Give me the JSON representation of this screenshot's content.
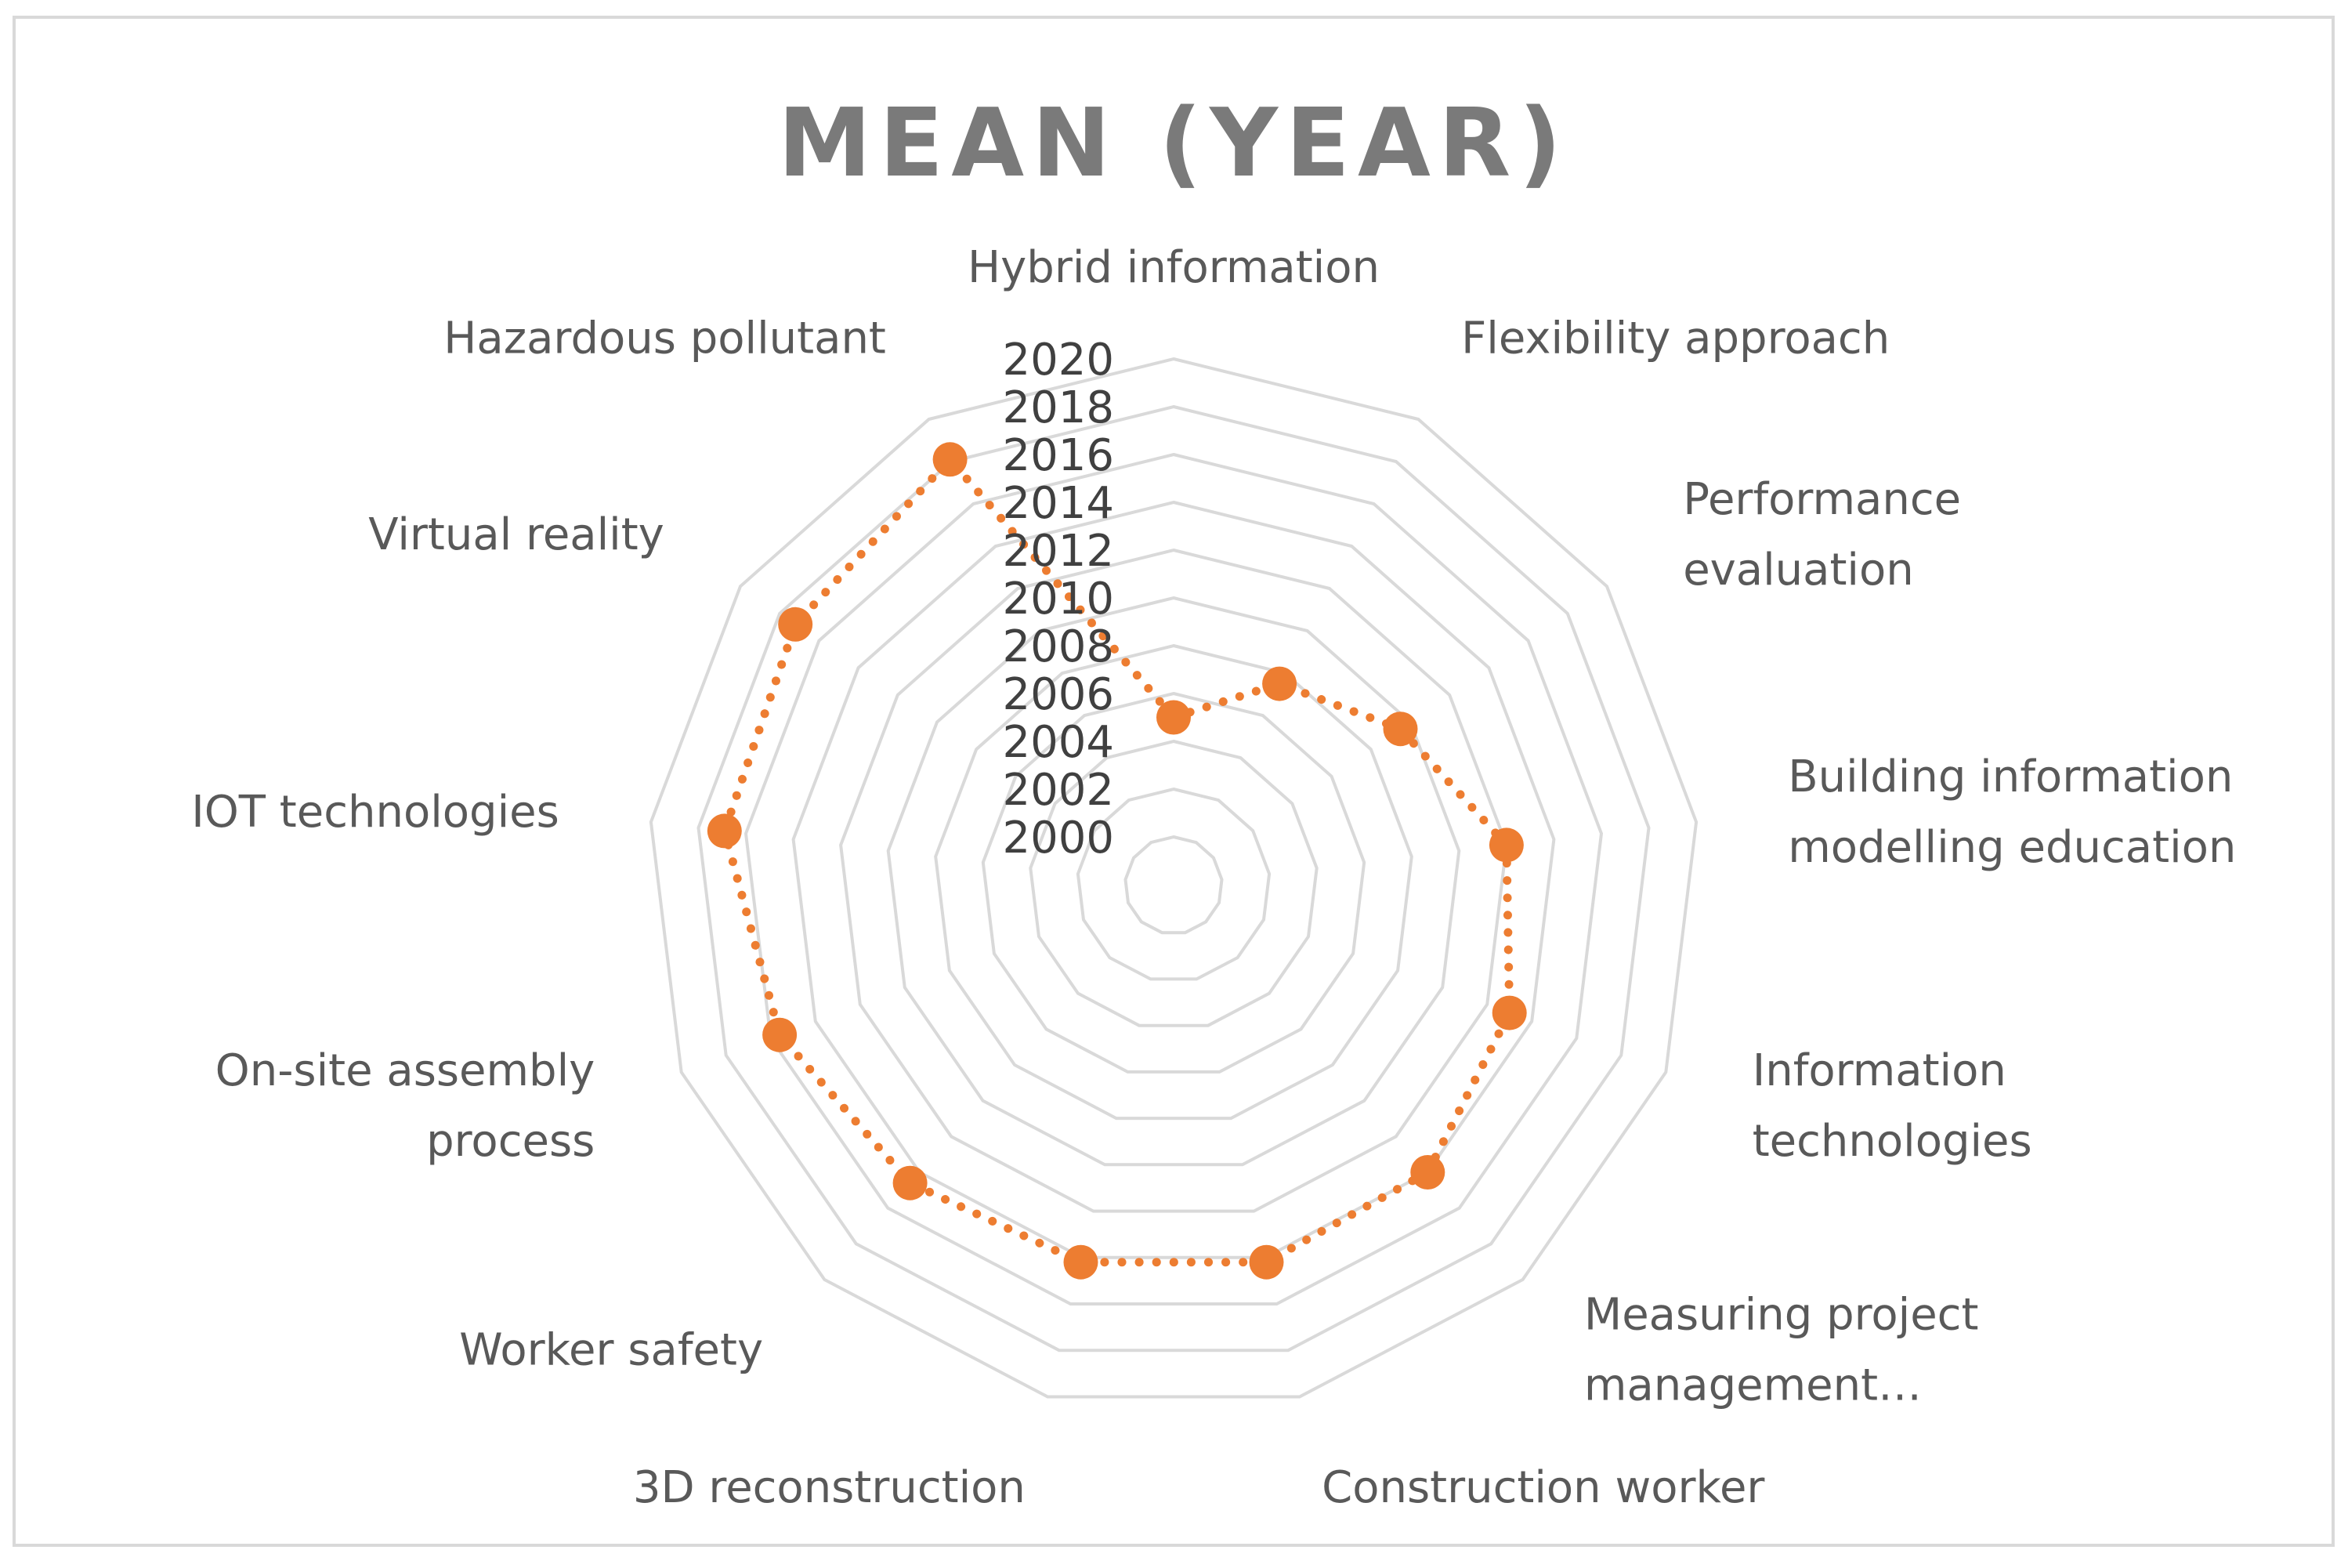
{
  "chart_data": {
    "type": "radar",
    "title": "MEAN (YEAR)",
    "axis_range": [
      2000,
      2020
    ],
    "axis_ticks": [
      "2020",
      "2018",
      "2016",
      "2014",
      "2012",
      "2010",
      "2008",
      "2006",
      "2004",
      "2002",
      "2000"
    ],
    "categories": [
      {
        "label": "Hybrid information",
        "lines": [
          "Hybrid information"
        ]
      },
      {
        "label": "Flexibility approach",
        "lines": [
          "Flexibility approach"
        ]
      },
      {
        "label": "Performance evaluation",
        "lines": [
          "Performance",
          "evaluation"
        ]
      },
      {
        "label": "Building information modelling education",
        "lines": [
          "Building information",
          "modelling education"
        ]
      },
      {
        "label": "Information technologies",
        "lines": [
          "Information",
          "technologies"
        ]
      },
      {
        "label": "Measuring project management…",
        "lines": [
          "Measuring project",
          "management…"
        ]
      },
      {
        "label": "Construction worker",
        "lines": [
          "Construction worker"
        ]
      },
      {
        "label": "3D reconstruction",
        "lines": [
          "3D reconstruction"
        ]
      },
      {
        "label": "Worker safety",
        "lines": [
          "Worker safety"
        ]
      },
      {
        "label": "On-site assembly process",
        "lines": [
          "On-site assembly",
          "process"
        ]
      },
      {
        "label": "IOT technologies",
        "lines": [
          "IOT technologies"
        ]
      },
      {
        "label": "Virtual reality",
        "lines": [
          "Virtual reality"
        ]
      },
      {
        "label": "Hazardous pollutant",
        "lines": [
          "Hazardous pollutant"
        ]
      }
    ],
    "series": [
      {
        "name": "Mean (Year)",
        "values": [
          2005,
          2007.5,
          2009.5,
          2012,
          2013,
          2014,
          2014.2,
          2014.2,
          2014.6,
          2015.6,
          2016.9,
          2017.2,
          2018.1
        ]
      }
    ],
    "colors": {
      "series": "#ED7D31",
      "grid": "#D9D9D9",
      "title": "#7A7A7A",
      "label": "#595959",
      "tick": "#404040",
      "frame": "#D9D9D9"
    },
    "grid": true,
    "legend": "none"
  }
}
